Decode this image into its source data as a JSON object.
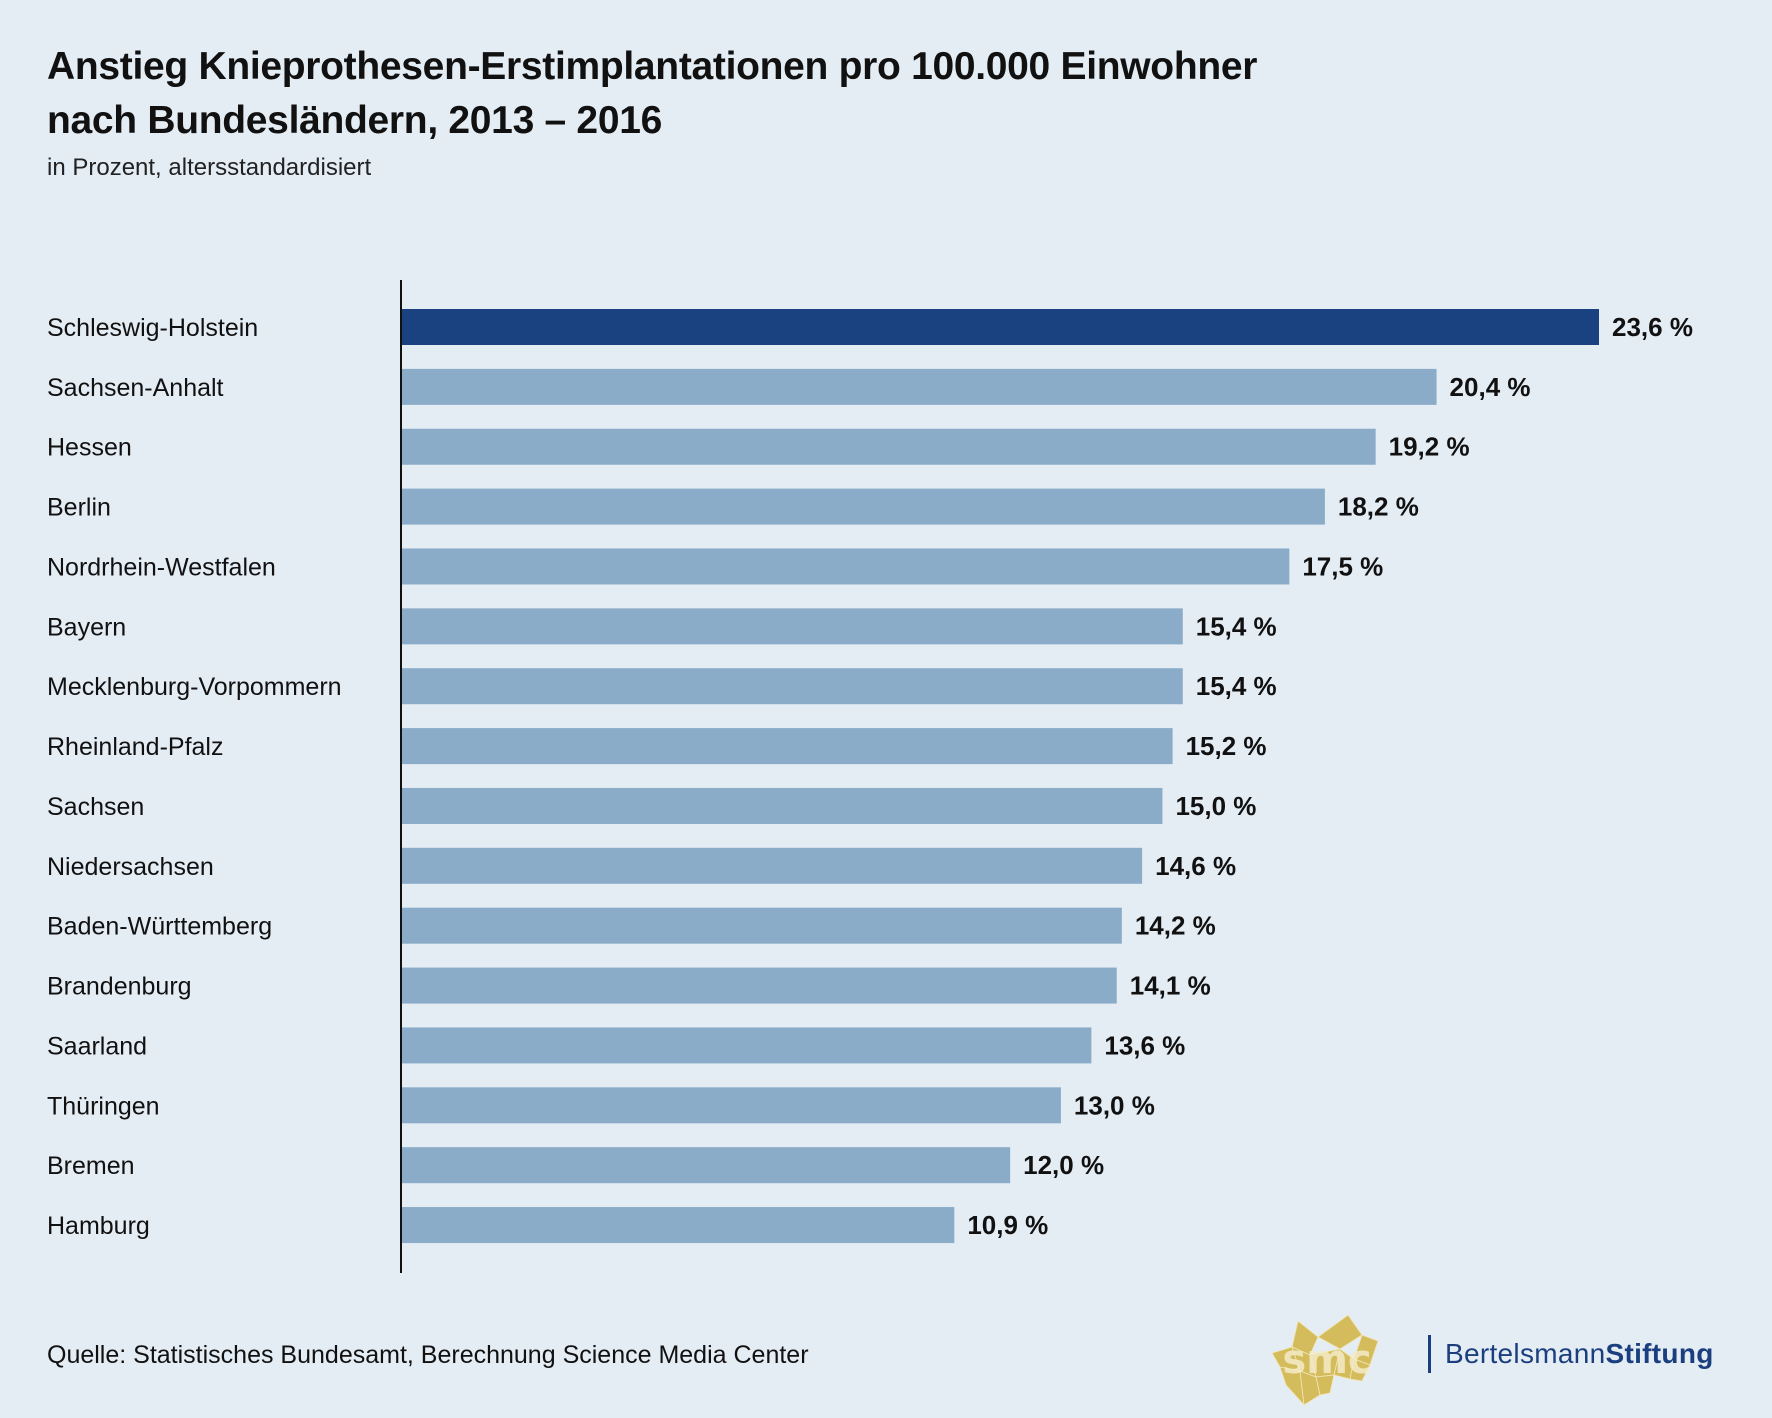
{
  "header": {
    "title_line1": "Anstieg Knieprothesen-Erstimplantationen pro 100.000 Einwohner",
    "title_line2": "nach Bundesländern, 2013 – 2016",
    "subtitle": "in Prozent, altersstandardisiert"
  },
  "chart_data": {
    "type": "bar",
    "orientation": "horizontal",
    "title": "Anstieg Knieprothesen-Erstimplantationen pro 100.000 Einwohner nach Bundesländern, 2013 – 2016",
    "subtitle": "in Prozent, altersstandardisiert",
    "xlabel": "",
    "ylabel": "",
    "xlim": [
      0,
      23.6
    ],
    "grid": false,
    "unit": "%",
    "categories": [
      "Schleswig-Holstein",
      "Sachsen-Anhalt",
      "Hessen",
      "Berlin",
      "Nordrhein-Westfalen",
      "Bayern",
      "Mecklenburg-Vorpommern",
      "Rheinland-Pfalz",
      "Sachsen",
      "Niedersachsen",
      "Baden-Württemberg",
      "Brandenburg",
      "Saarland",
      "Thüringen",
      "Bremen",
      "Hamburg"
    ],
    "values": [
      23.6,
      20.4,
      19.2,
      18.2,
      17.5,
      15.4,
      15.4,
      15.2,
      15.0,
      14.6,
      14.2,
      14.1,
      13.6,
      13.0,
      12.0,
      10.9
    ],
    "value_labels": [
      "23,6 %",
      "20,4 %",
      "19,2 %",
      "18,2 %",
      "17,5 %",
      "15,4 %",
      "15,4 %",
      "15,2 %",
      "15,0 %",
      "14,6 %",
      "14,2 %",
      "14,1 %",
      "13,6 %",
      "13,0 %",
      "12,0 %",
      "10,9 %"
    ],
    "highlight_index": 0,
    "colors": {
      "highlight": "#1b4280",
      "default": "#8aacc8",
      "axis": "#111111"
    }
  },
  "footer": {
    "source": "Quelle: Statistisches Bundesamt, Berechnung Science Media Center",
    "logo_smc": {
      "icon": "smc-logo-icon",
      "text": "smc",
      "color": "#d4bc5c"
    },
    "logo_bertelsmann": {
      "regular": "Bertelsmann",
      "bold": "Stiftung",
      "color": "#1b3f7e"
    }
  }
}
